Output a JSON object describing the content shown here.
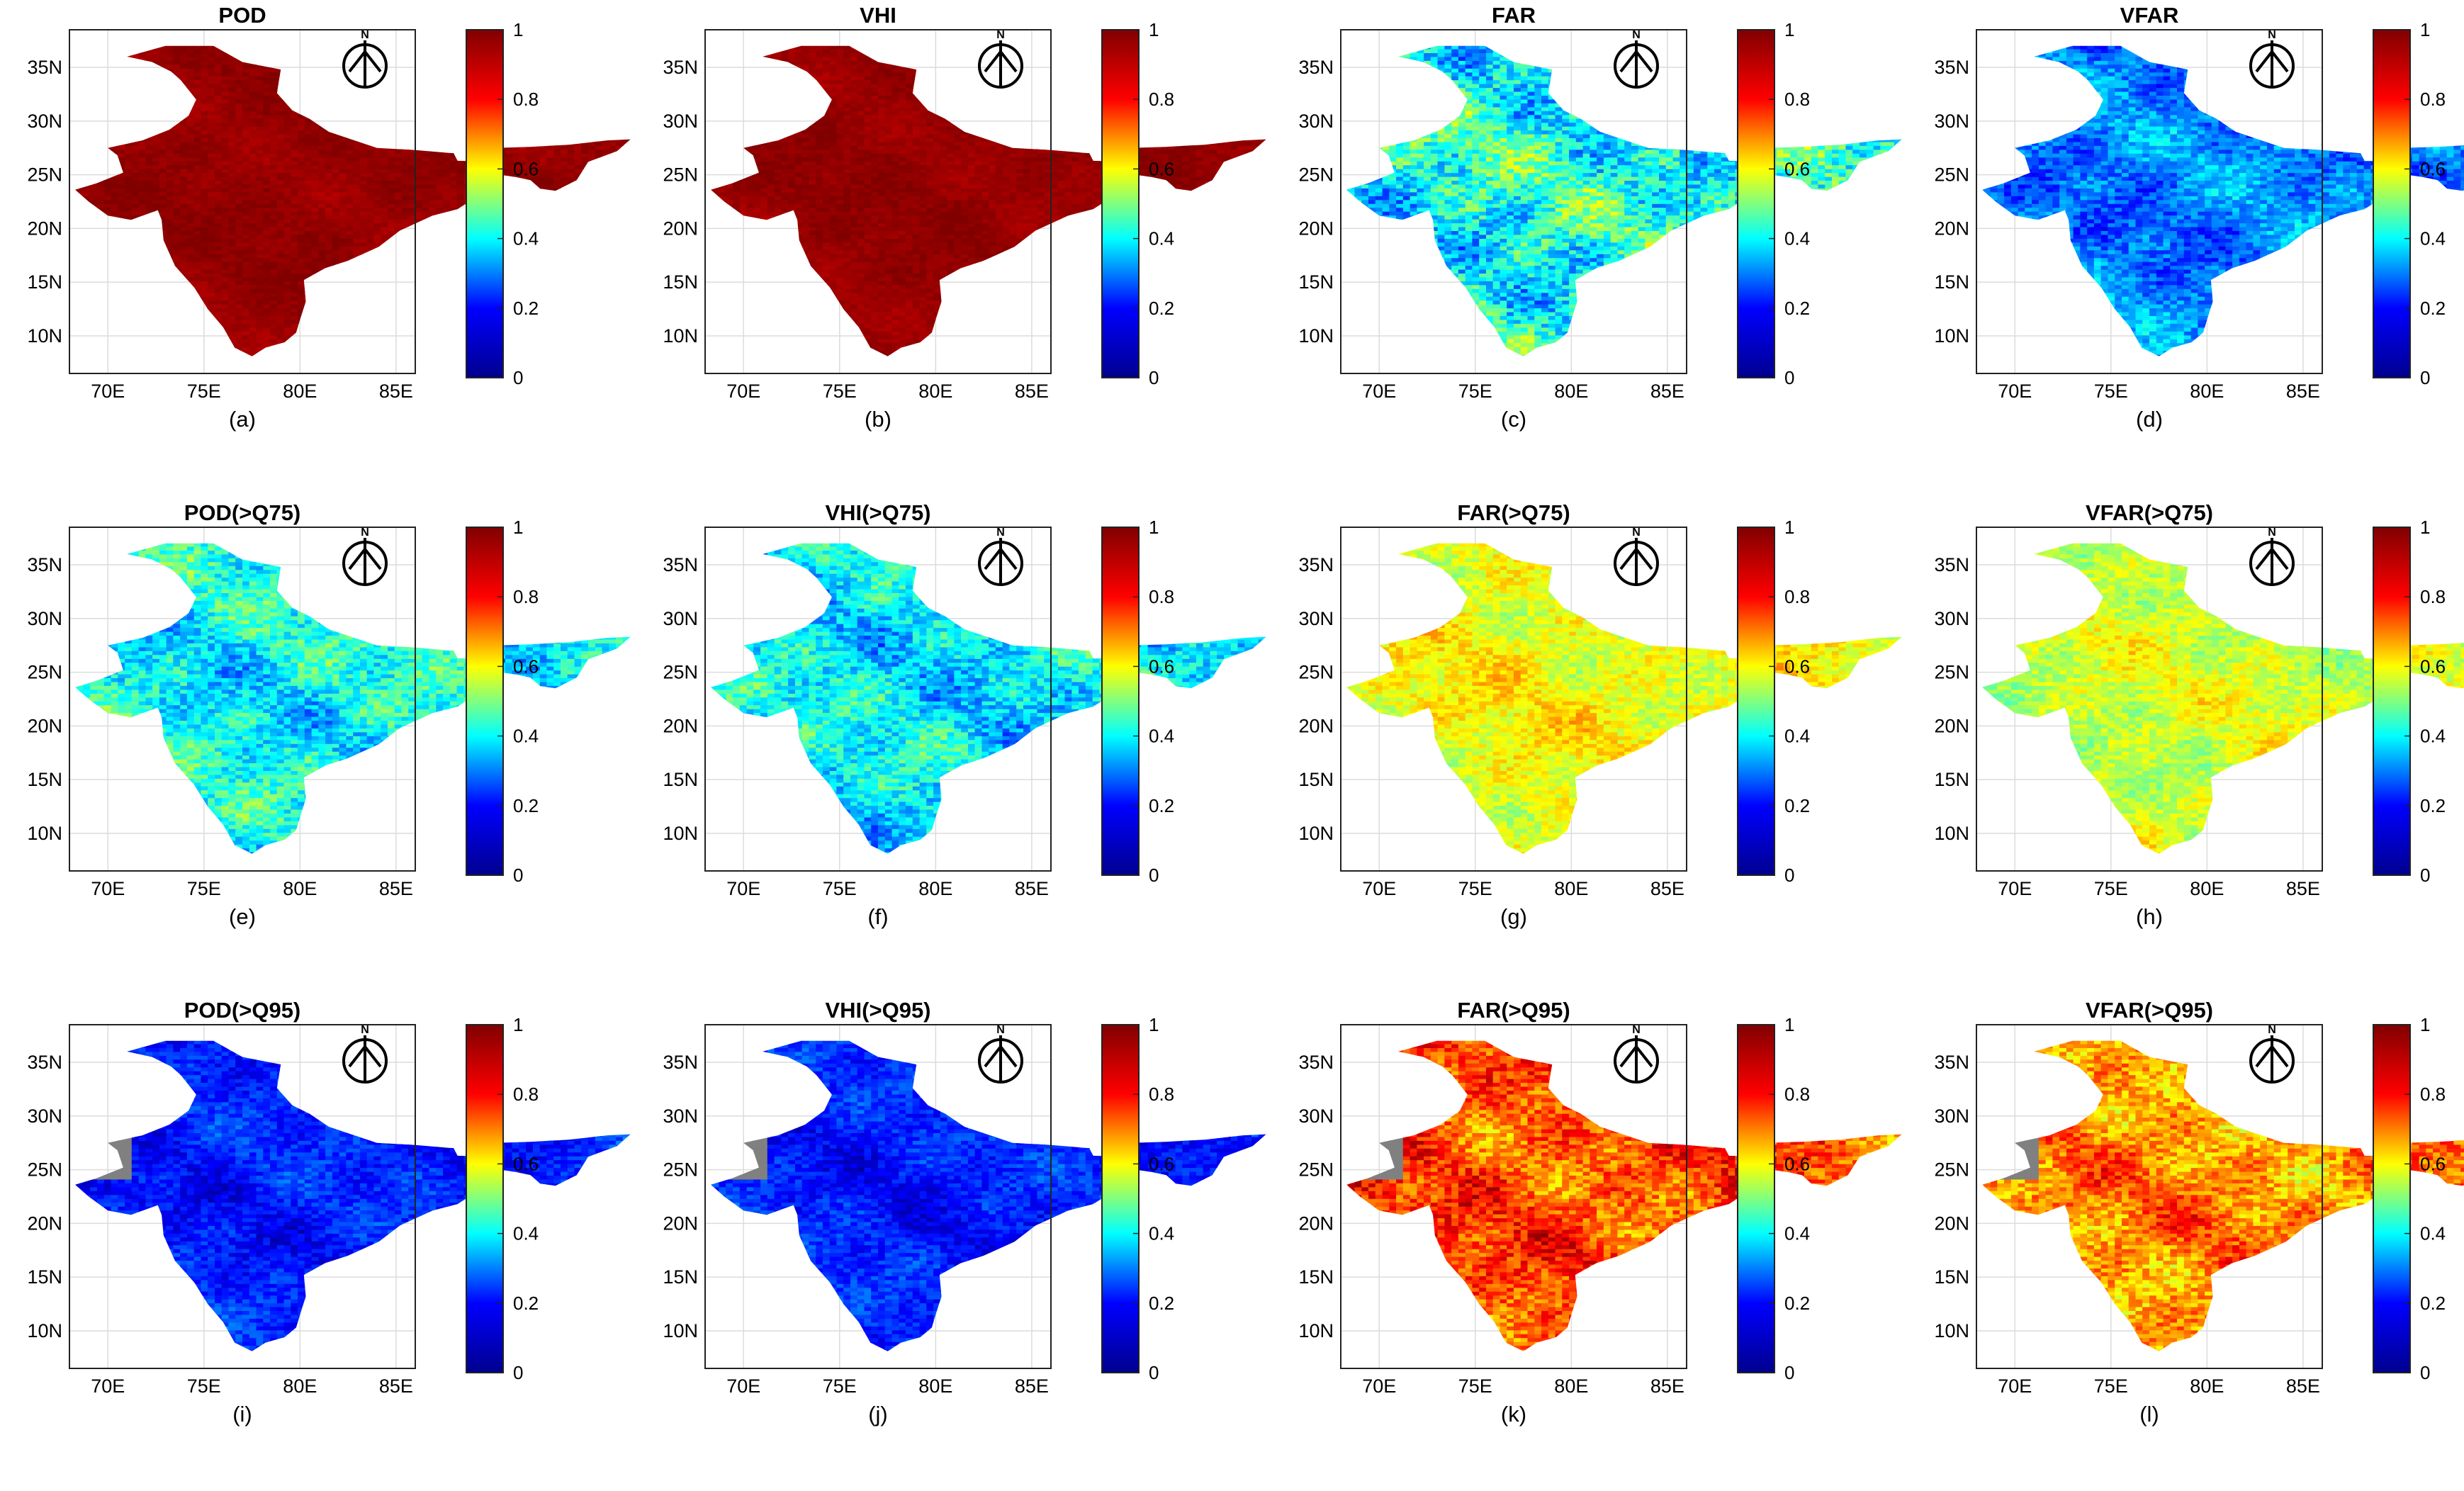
{
  "figure": {
    "map_region": "India",
    "axes": {
      "x_ticks": [
        "70E",
        "75E",
        "80E",
        "85E"
      ],
      "x_values": [
        70,
        75,
        80,
        85
      ],
      "y_ticks": [
        "35N",
        "30N",
        "25N",
        "20N",
        "15N",
        "10N"
      ],
      "y_values": [
        35,
        30,
        25,
        20,
        15,
        10
      ],
      "xlim": [
        68,
        86
      ],
      "ylim": [
        6.5,
        38.5
      ]
    },
    "north_arrow_label": "N",
    "colorbar": {
      "colormap": "jet",
      "ticks": [
        "1",
        "0.8",
        "0.6",
        "0.4",
        "0.2",
        "0"
      ],
      "tick_values": [
        1,
        0.8,
        0.6,
        0.4,
        0.2,
        0
      ],
      "range": [
        0,
        1
      ],
      "stops": [
        "#00008f",
        "#0000ff",
        "#00ffff",
        "#ffff00",
        "#ff0000",
        "#800000"
      ]
    },
    "no_data_color": "#808080",
    "panels": [
      {
        "id": "a",
        "title": "POD",
        "sublabel": "(a)",
        "mean_value": 0.98,
        "variability": 0.02
      },
      {
        "id": "b",
        "title": "VHI",
        "sublabel": "(b)",
        "mean_value": 0.98,
        "variability": 0.02
      },
      {
        "id": "c",
        "title": "FAR",
        "sublabel": "(c)",
        "mean_value": 0.4,
        "variability": 0.15
      },
      {
        "id": "d",
        "title": "VFAR",
        "sublabel": "(d)",
        "mean_value": 0.25,
        "variability": 0.1
      },
      {
        "id": "e",
        "title": "POD(>Q75)",
        "sublabel": "(e)",
        "mean_value": 0.38,
        "variability": 0.12
      },
      {
        "id": "f",
        "title": "VHI(>Q75)",
        "sublabel": "(f)",
        "mean_value": 0.36,
        "variability": 0.12
      },
      {
        "id": "g",
        "title": "FAR(>Q75)",
        "sublabel": "(g)",
        "mean_value": 0.62,
        "variability": 0.08
      },
      {
        "id": "h",
        "title": "VFAR(>Q75)",
        "sublabel": "(h)",
        "mean_value": 0.58,
        "variability": 0.08
      },
      {
        "id": "i",
        "title": "POD(>Q95)",
        "sublabel": "(i)",
        "mean_value": 0.15,
        "variability": 0.07
      },
      {
        "id": "j",
        "title": "VHI(>Q95)",
        "sublabel": "(j)",
        "mean_value": 0.15,
        "variability": 0.07
      },
      {
        "id": "k",
        "title": "FAR(>Q95)",
        "sublabel": "(k)",
        "mean_value": 0.8,
        "variability": 0.12
      },
      {
        "id": "l",
        "title": "VFAR(>Q95)",
        "sublabel": "(l)",
        "mean_value": 0.74,
        "variability": 0.12
      }
    ]
  }
}
